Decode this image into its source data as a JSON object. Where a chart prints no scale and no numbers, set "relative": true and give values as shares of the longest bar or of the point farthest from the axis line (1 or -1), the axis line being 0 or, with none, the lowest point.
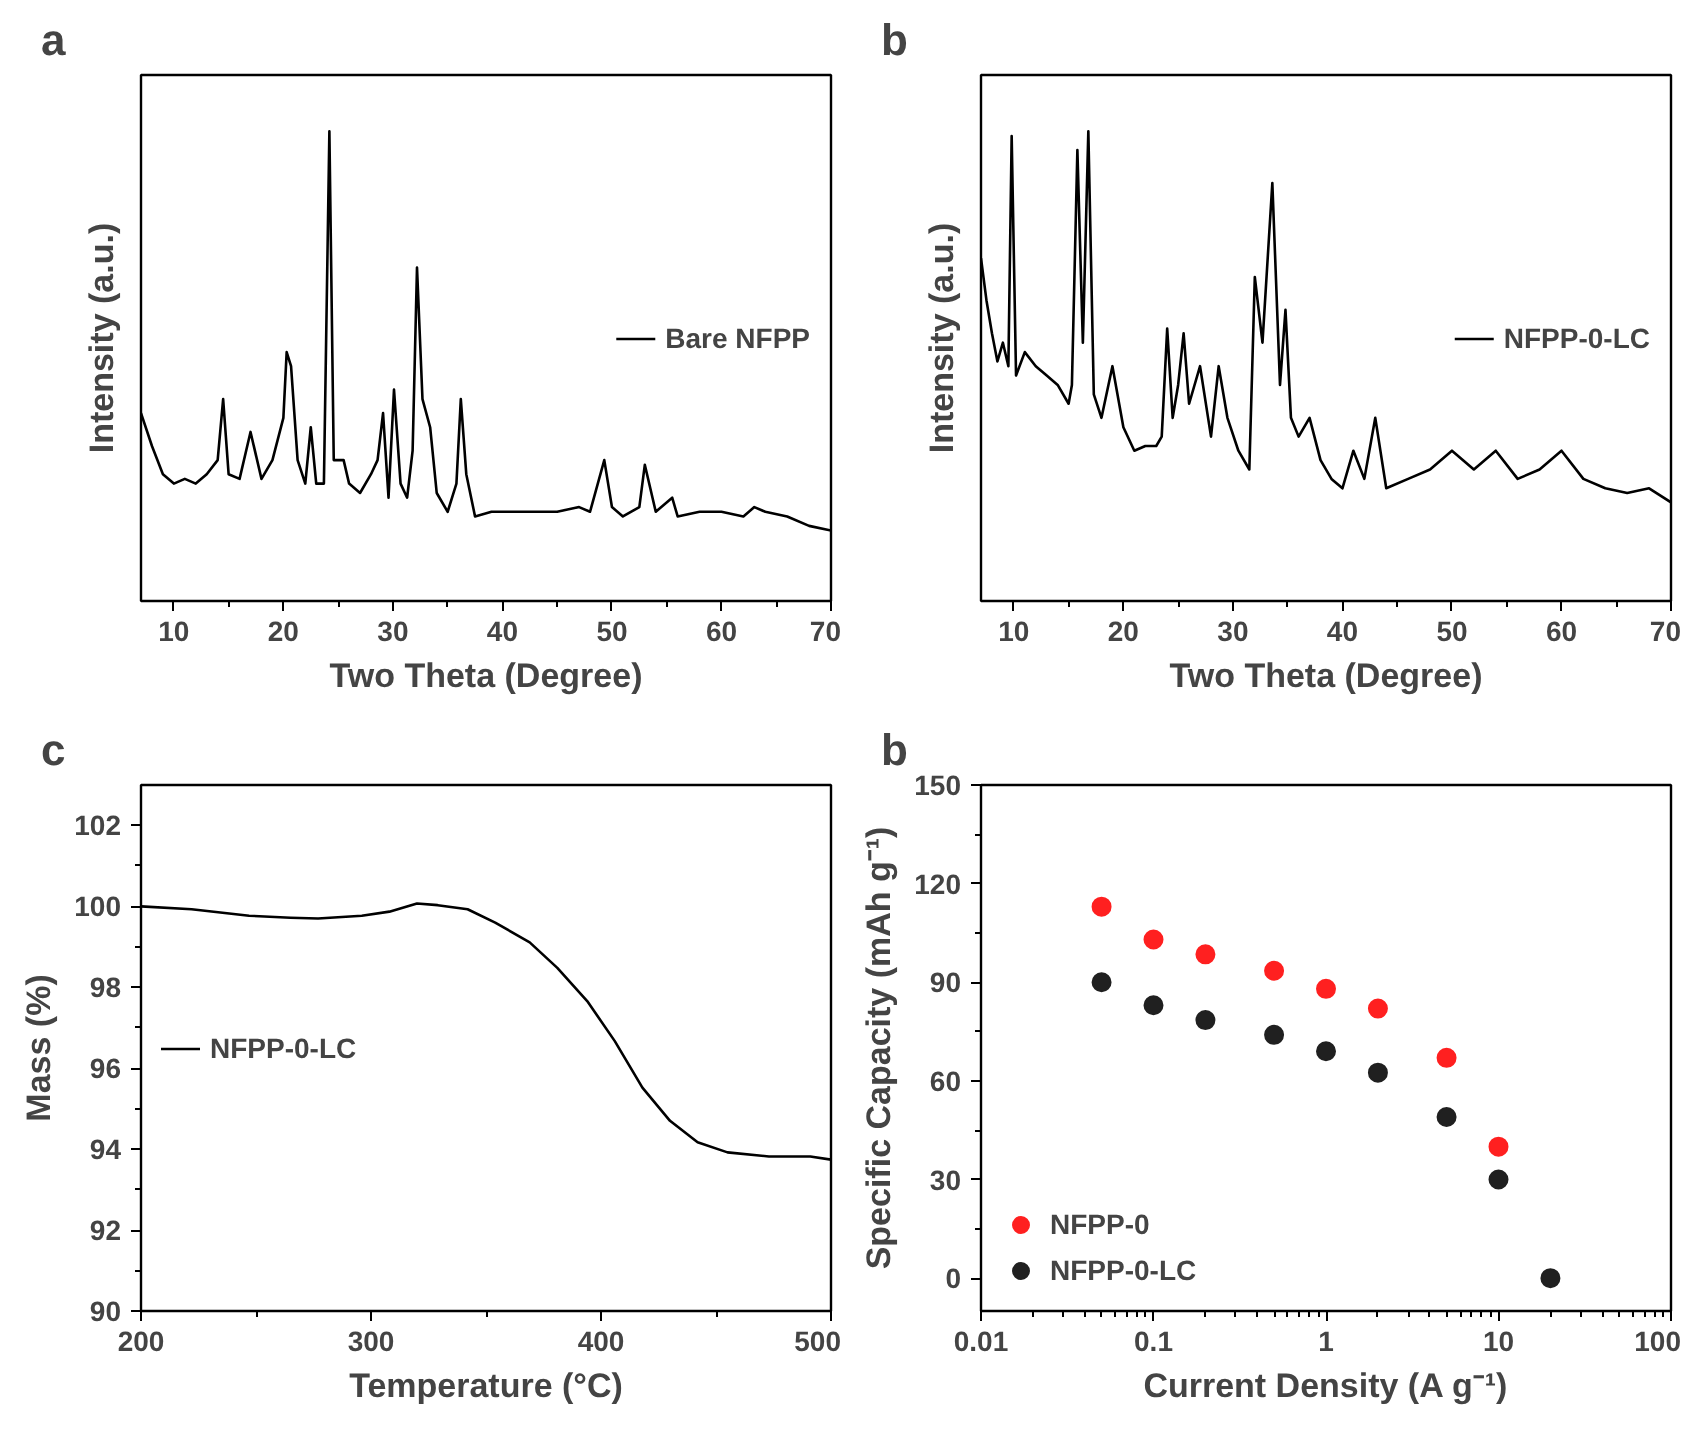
{
  "chart_data": [
    {
      "type": "line",
      "title": "a",
      "xlabel": "Two Theta (Degree)",
      "ylabel": "Intensity (a.u.)",
      "relative": true,
      "tick_labels": "x",
      "legend": "right",
      "xlim": [
        7,
        70
      ],
      "xticks": [
        10,
        20,
        30,
        40,
        50,
        60,
        70
      ],
      "series": [
        {
          "name": "Bare NFPP",
          "color": "#000000",
          "x": [
            7,
            8,
            9,
            10,
            11,
            12,
            13,
            14,
            14.5,
            15,
            16,
            17,
            18,
            19,
            20,
            20.3,
            20.7,
            21.3,
            22,
            22.5,
            23,
            23.7,
            24.2,
            24.6,
            25.5,
            26,
            27,
            28,
            28.6,
            29.1,
            29.6,
            30.1,
            30.7,
            31.3,
            31.8,
            32.2,
            32.7,
            33.4,
            34,
            35,
            35.8,
            36.2,
            36.7,
            37.5,
            39,
            41,
            43,
            45,
            47,
            48,
            49.3,
            50,
            51,
            52.5,
            53,
            54,
            55.5,
            56,
            58,
            60,
            62,
            63,
            64,
            66,
            68,
            70
          ],
          "values": [
            0.4,
            0.33,
            0.27,
            0.25,
            0.26,
            0.25,
            0.27,
            0.3,
            0.43,
            0.27,
            0.26,
            0.36,
            0.26,
            0.3,
            0.39,
            0.53,
            0.5,
            0.3,
            0.25,
            0.37,
            0.25,
            0.25,
            1.0,
            0.3,
            0.3,
            0.25,
            0.23,
            0.27,
            0.3,
            0.4,
            0.22,
            0.45,
            0.25,
            0.22,
            0.32,
            0.71,
            0.43,
            0.37,
            0.23,
            0.19,
            0.25,
            0.43,
            0.27,
            0.18,
            0.19,
            0.19,
            0.19,
            0.19,
            0.2,
            0.19,
            0.3,
            0.2,
            0.18,
            0.2,
            0.29,
            0.19,
            0.22,
            0.18,
            0.19,
            0.19,
            0.18,
            0.2,
            0.19,
            0.18,
            0.16,
            0.15
          ]
        }
      ]
    },
    {
      "type": "line",
      "title": "b",
      "xlabel": "Two Theta (Degree)",
      "ylabel": "Intensity (a.u.)",
      "relative": true,
      "tick_labels": "x",
      "legend": "right",
      "xlim": [
        7,
        70
      ],
      "xticks": [
        10,
        20,
        30,
        40,
        50,
        60,
        70
      ],
      "series": [
        {
          "name": "NFPP-0-LC",
          "color": "#000000",
          "x": [
            7,
            7.5,
            8,
            8.5,
            9,
            9.5,
            9.8,
            10.2,
            11,
            12,
            13,
            14,
            15,
            15.3,
            15.8,
            16.3,
            16.8,
            17.3,
            18,
            19,
            20,
            21,
            22,
            23,
            23.5,
            24,
            24.5,
            25,
            25.5,
            26,
            27,
            28,
            28.7,
            29.5,
            30.5,
            31.5,
            32,
            32.7,
            33.6,
            34.3,
            34.8,
            35.3,
            36,
            37,
            38,
            39,
            40,
            41,
            42,
            43,
            44,
            46,
            48,
            50,
            52,
            54,
            56,
            58,
            60,
            62,
            64,
            66,
            68,
            70
          ],
          "values": [
            0.73,
            0.64,
            0.57,
            0.51,
            0.55,
            0.5,
            0.99,
            0.48,
            0.53,
            0.5,
            0.48,
            0.46,
            0.42,
            0.46,
            0.96,
            0.55,
            1.0,
            0.44,
            0.39,
            0.5,
            0.37,
            0.32,
            0.33,
            0.33,
            0.35,
            0.58,
            0.39,
            0.46,
            0.57,
            0.42,
            0.5,
            0.35,
            0.5,
            0.39,
            0.32,
            0.28,
            0.69,
            0.55,
            0.89,
            0.46,
            0.62,
            0.39,
            0.35,
            0.39,
            0.3,
            0.26,
            0.24,
            0.32,
            0.26,
            0.39,
            0.24,
            0.26,
            0.28,
            0.32,
            0.28,
            0.32,
            0.26,
            0.28,
            0.32,
            0.26,
            0.24,
            0.23,
            0.24,
            0.21
          ]
        }
      ]
    },
    {
      "type": "line",
      "title": "c",
      "xlabel": "Temperature (°C)",
      "ylabel": "Mass (%)",
      "legend": "left",
      "xlim": [
        200,
        500
      ],
      "xticks": [
        200,
        300,
        400,
        500
      ],
      "ylim": [
        90,
        103
      ],
      "yticks": [
        90,
        92,
        94,
        96,
        98,
        100,
        102
      ],
      "series": [
        {
          "name": "NFPP-0-LC",
          "color": "#000000",
          "x": [
            200,
            222,
            247,
            265,
            277,
            296,
            308,
            320,
            329,
            342,
            354,
            369,
            381,
            394,
            406,
            418,
            430,
            442,
            455,
            473,
            491,
            500
          ],
          "values": [
            100.0,
            99.93,
            99.77,
            99.72,
            99.7,
            99.77,
            99.87,
            100.07,
            100.03,
            99.93,
            99.6,
            99.11,
            98.48,
            97.66,
            96.67,
            95.52,
            94.7,
            94.17,
            93.92,
            93.82,
            93.82,
            93.74
          ]
        }
      ]
    },
    {
      "type": "scatter",
      "title": "b",
      "xlabel": "Current Density (A g⁻¹)",
      "ylabel": "Specific Capacity (mAh g⁻¹)",
      "log": "x",
      "marker": "circle",
      "legend": "bottom left",
      "xlim": [
        0.01,
        100
      ],
      "xticks": [
        0.01,
        0.1,
        1,
        10,
        100
      ],
      "ylim": [
        -10,
        150
      ],
      "yticks": [
        0,
        30,
        60,
        90,
        120,
        150
      ],
      "x": [
        0.05,
        0.1,
        0.2,
        0.5,
        1,
        2,
        5,
        10,
        20
      ],
      "series": [
        {
          "name": "NFPP-0",
          "color": "#ff2020",
          "values": [
            113,
            103,
            98.5,
            93.5,
            88,
            82,
            67,
            40,
            null
          ]
        },
        {
          "name": "NFPP-0-LC",
          "color": "#202020",
          "values": [
            90,
            83,
            78.5,
            74,
            69,
            62.5,
            49,
            30,
            0
          ]
        }
      ]
    }
  ]
}
